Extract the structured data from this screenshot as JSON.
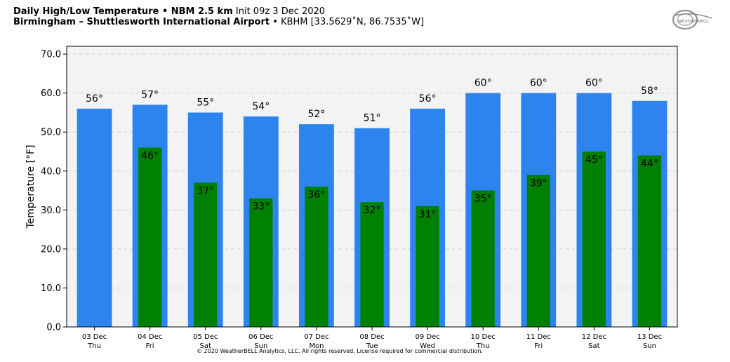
{
  "header": {
    "title_main": "Daily High/Low Temperature • NBM 2.5 km",
    "title_init": "Init 09z 3 Dec 2020",
    "location_name": "Birmingham – Shuttlesworth International Airport",
    "location_meta": "• KBHM [33.5629˚N, 86.7535˚W]"
  },
  "logo": {
    "text": "WEATHERBELL",
    "icon": "weatherbell-logo-icon"
  },
  "footer": {
    "copyright": "© 2020 WeatherBELL Analytics, LLC. All rights reserved. License required for commercial distribution."
  },
  "chart_data": {
    "type": "bar",
    "ylabel": "Temperature [°F]",
    "ylim": [
      0,
      72
    ],
    "yticks": [
      "0.0",
      "10.0",
      "20.0",
      "30.0",
      "40.0",
      "50.0",
      "60.0",
      "70.0"
    ],
    "ytick_values": [
      0,
      10,
      20,
      30,
      40,
      50,
      60,
      70
    ],
    "grid": true,
    "categories": [
      "03 Dec",
      "04 Dec",
      "05 Dec",
      "06 Dec",
      "07 Dec",
      "08 Dec",
      "09 Dec",
      "10 Dec",
      "11 Dec",
      "12 Dec",
      "13 Dec"
    ],
    "weekdays": [
      "Thu",
      "Fri",
      "Sat",
      "Sun",
      "Mon",
      "Tue",
      "Wed",
      "Thu",
      "Fri",
      "Sat",
      "Sun"
    ],
    "series": [
      {
        "color": "#2e84ee",
        "values": [
          56,
          57,
          55,
          54,
          52,
          51,
          56,
          60,
          60,
          60,
          58
        ],
        "labels": [
          "56°",
          "57°",
          "55°",
          "54°",
          "52°",
          "51°",
          "56°",
          "60°",
          "60°",
          "60°",
          "58°"
        ]
      },
      {
        "color": "#008000",
        "values": [
          null,
          46,
          37,
          33,
          36,
          32,
          31,
          35,
          39,
          45,
          44
        ],
        "labels": [
          "",
          "46°",
          "37°",
          "33°",
          "36°",
          "32°",
          "31°",
          "35°",
          "39°",
          "45°",
          "44°"
        ]
      }
    ],
    "plot_background": "#f3f3f3",
    "grid_color": "#d2d2d2"
  }
}
